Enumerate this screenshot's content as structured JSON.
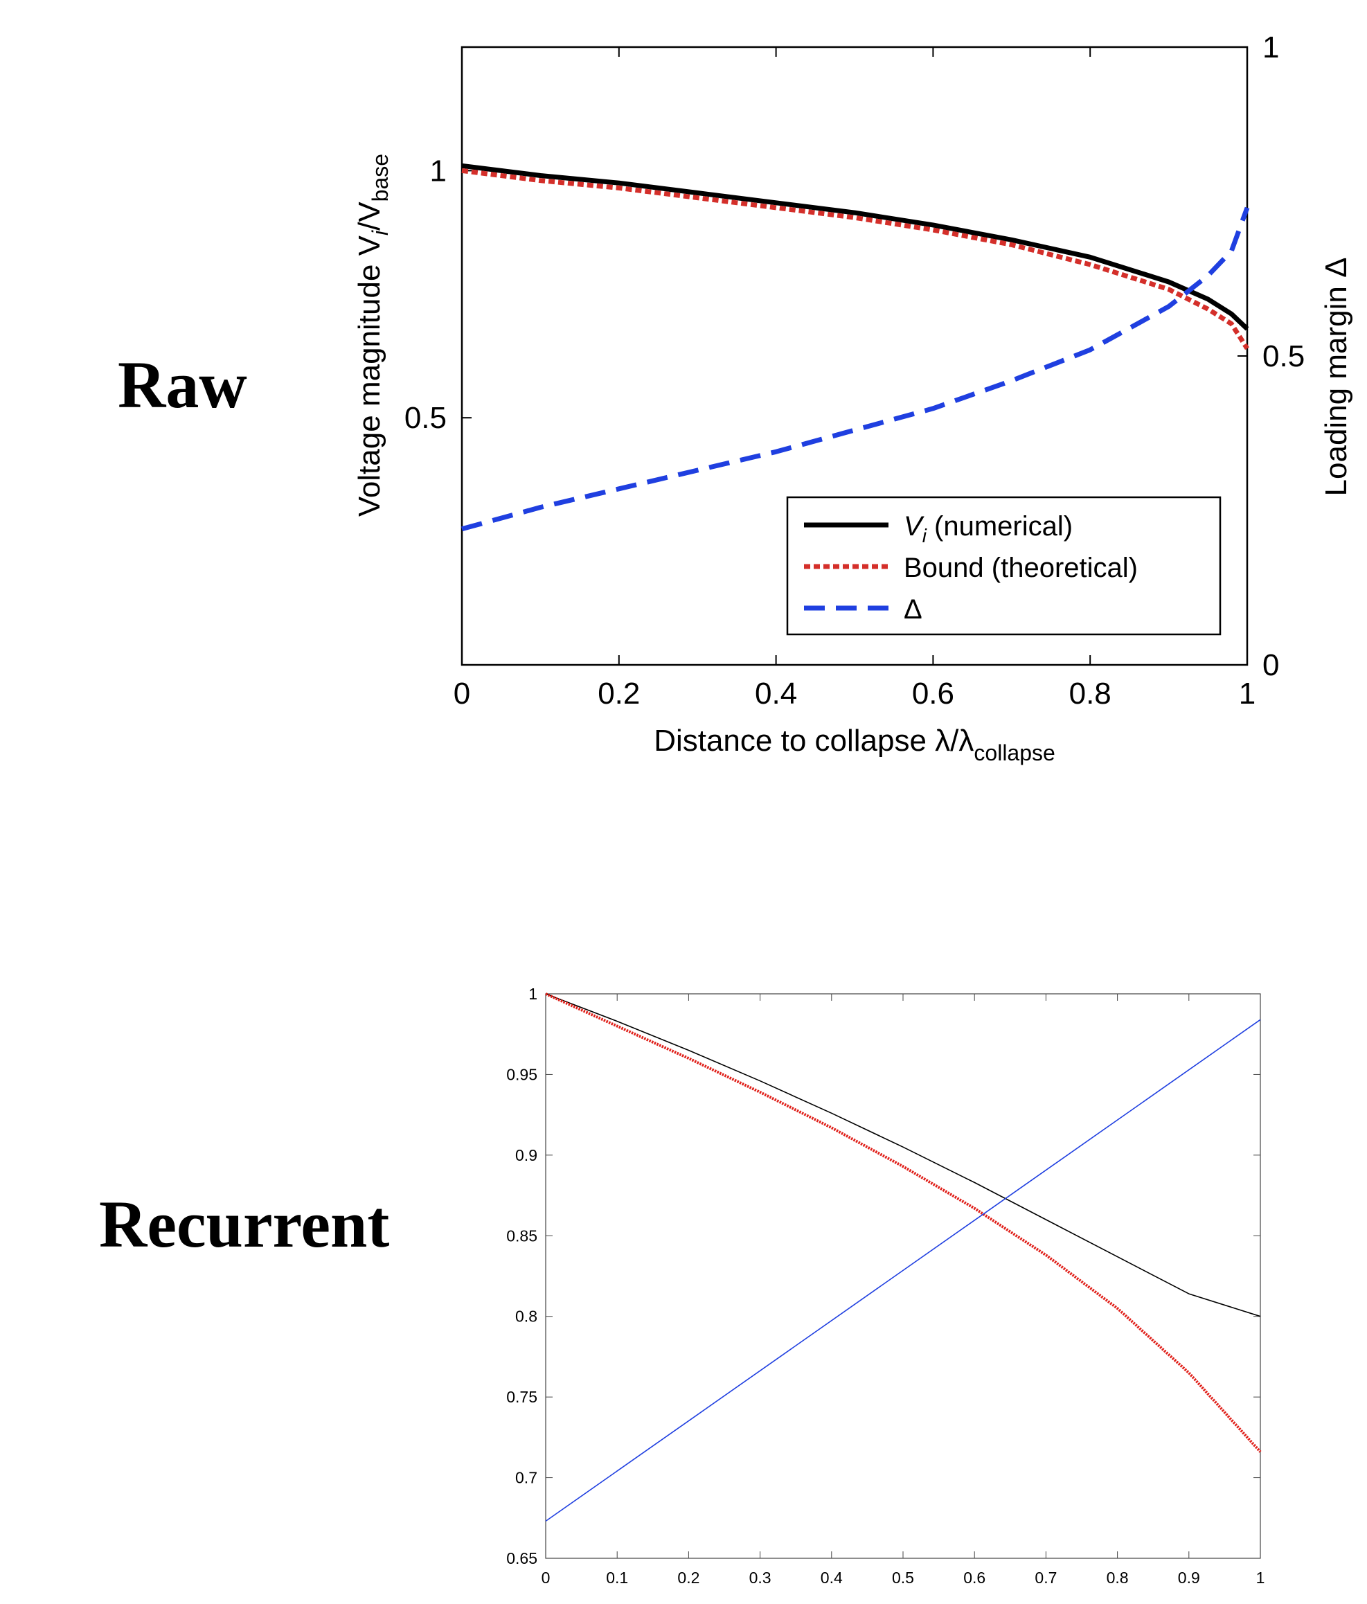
{
  "labels": {
    "raw": "Raw",
    "recurrent": "Recurrent"
  },
  "chart_data": [
    {
      "type": "line",
      "panel": "Raw",
      "xlabel": "Distance to collapse λ/λ",
      "xlabel_sub": "collapse",
      "ylabel_left": "Voltage magnitude V",
      "ylabel_left_sub_i": "i",
      "ylabel_left_mid": "/V",
      "ylabel_left_sub_base": "base",
      "ylabel_right": "Loading margin Δ",
      "xlim": [
        0,
        1
      ],
      "ylim_left": [
        0,
        1.25
      ],
      "ylim_right": [
        0,
        1
      ],
      "x_ticks": [
        "0",
        "0.2",
        "0.4",
        "0.6",
        "0.8",
        "1"
      ],
      "y_left_ticks": [
        "0.5",
        "1"
      ],
      "y_right_ticks": [
        "0",
        "0.5",
        "1"
      ],
      "legend": {
        "placement": "lower-right",
        "entries": [
          {
            "label_var": "V",
            "label_sub": "i",
            "label_rest": " (numerical)"
          },
          {
            "label_var": "",
            "label_sub": "",
            "label_rest": "Bound (theoretical)"
          },
          {
            "label_var": "",
            "label_sub": "",
            "label_rest": "Δ"
          }
        ]
      },
      "series": [
        {
          "color": "#000000",
          "dash": "solid",
          "axis": "left",
          "x": [
            0,
            0.1,
            0.2,
            0.3,
            0.4,
            0.5,
            0.6,
            0.7,
            0.8,
            0.9,
            0.95,
            0.98,
            1.0
          ],
          "y": [
            1.01,
            0.99,
            0.975,
            0.955,
            0.935,
            0.915,
            0.89,
            0.86,
            0.825,
            0.775,
            0.74,
            0.71,
            0.68
          ]
        },
        {
          "color": "#d42f2a",
          "dash": "dotted",
          "axis": "left",
          "x": [
            0,
            0.1,
            0.2,
            0.3,
            0.4,
            0.5,
            0.6,
            0.7,
            0.8,
            0.9,
            0.95,
            0.98,
            1.0
          ],
          "y": [
            1.0,
            0.98,
            0.965,
            0.945,
            0.925,
            0.905,
            0.88,
            0.85,
            0.81,
            0.76,
            0.72,
            0.69,
            0.64
          ]
        },
        {
          "color": "#1f3fe0",
          "dash": "dashed",
          "axis": "right",
          "x": [
            0,
            0.1,
            0.2,
            0.3,
            0.4,
            0.5,
            0.6,
            0.7,
            0.8,
            0.9,
            0.95,
            0.98,
            1.0
          ],
          "y": [
            0.22,
            0.255,
            0.285,
            0.315,
            0.345,
            0.38,
            0.415,
            0.46,
            0.51,
            0.58,
            0.63,
            0.67,
            0.74
          ]
        }
      ]
    },
    {
      "type": "line",
      "panel": "Recurrent",
      "xlim": [
        0,
        1
      ],
      "ylim": [
        0.65,
        1
      ],
      "x_ticks": [
        "0",
        "0.1",
        "0.2",
        "0.3",
        "0.4",
        "0.5",
        "0.6",
        "0.7",
        "0.8",
        "0.9",
        "1"
      ],
      "y_ticks": [
        "0.65",
        "0.7",
        "0.75",
        "0.8",
        "0.85",
        "0.9",
        "0.95",
        "1"
      ],
      "series": [
        {
          "color": "#000000",
          "dash": "solid",
          "x": [
            0,
            0.1,
            0.2,
            0.3,
            0.4,
            0.5,
            0.6,
            0.7,
            0.8,
            0.9,
            1.0
          ],
          "y": [
            1.0,
            0.983,
            0.965,
            0.946,
            0.926,
            0.905,
            0.883,
            0.86,
            0.837,
            0.814,
            0.8
          ]
        },
        {
          "color": "#e0201a",
          "dash": "dotted",
          "x": [
            0,
            0.1,
            0.2,
            0.3,
            0.4,
            0.5,
            0.6,
            0.7,
            0.8,
            0.9,
            1.0
          ],
          "y": [
            1.0,
            0.98,
            0.96,
            0.939,
            0.917,
            0.893,
            0.867,
            0.838,
            0.805,
            0.765,
            0.716
          ]
        },
        {
          "color": "#1f3fe0",
          "dash": "solid",
          "x": [
            0,
            1
          ],
          "y": [
            0.673,
            0.984
          ]
        }
      ]
    }
  ]
}
